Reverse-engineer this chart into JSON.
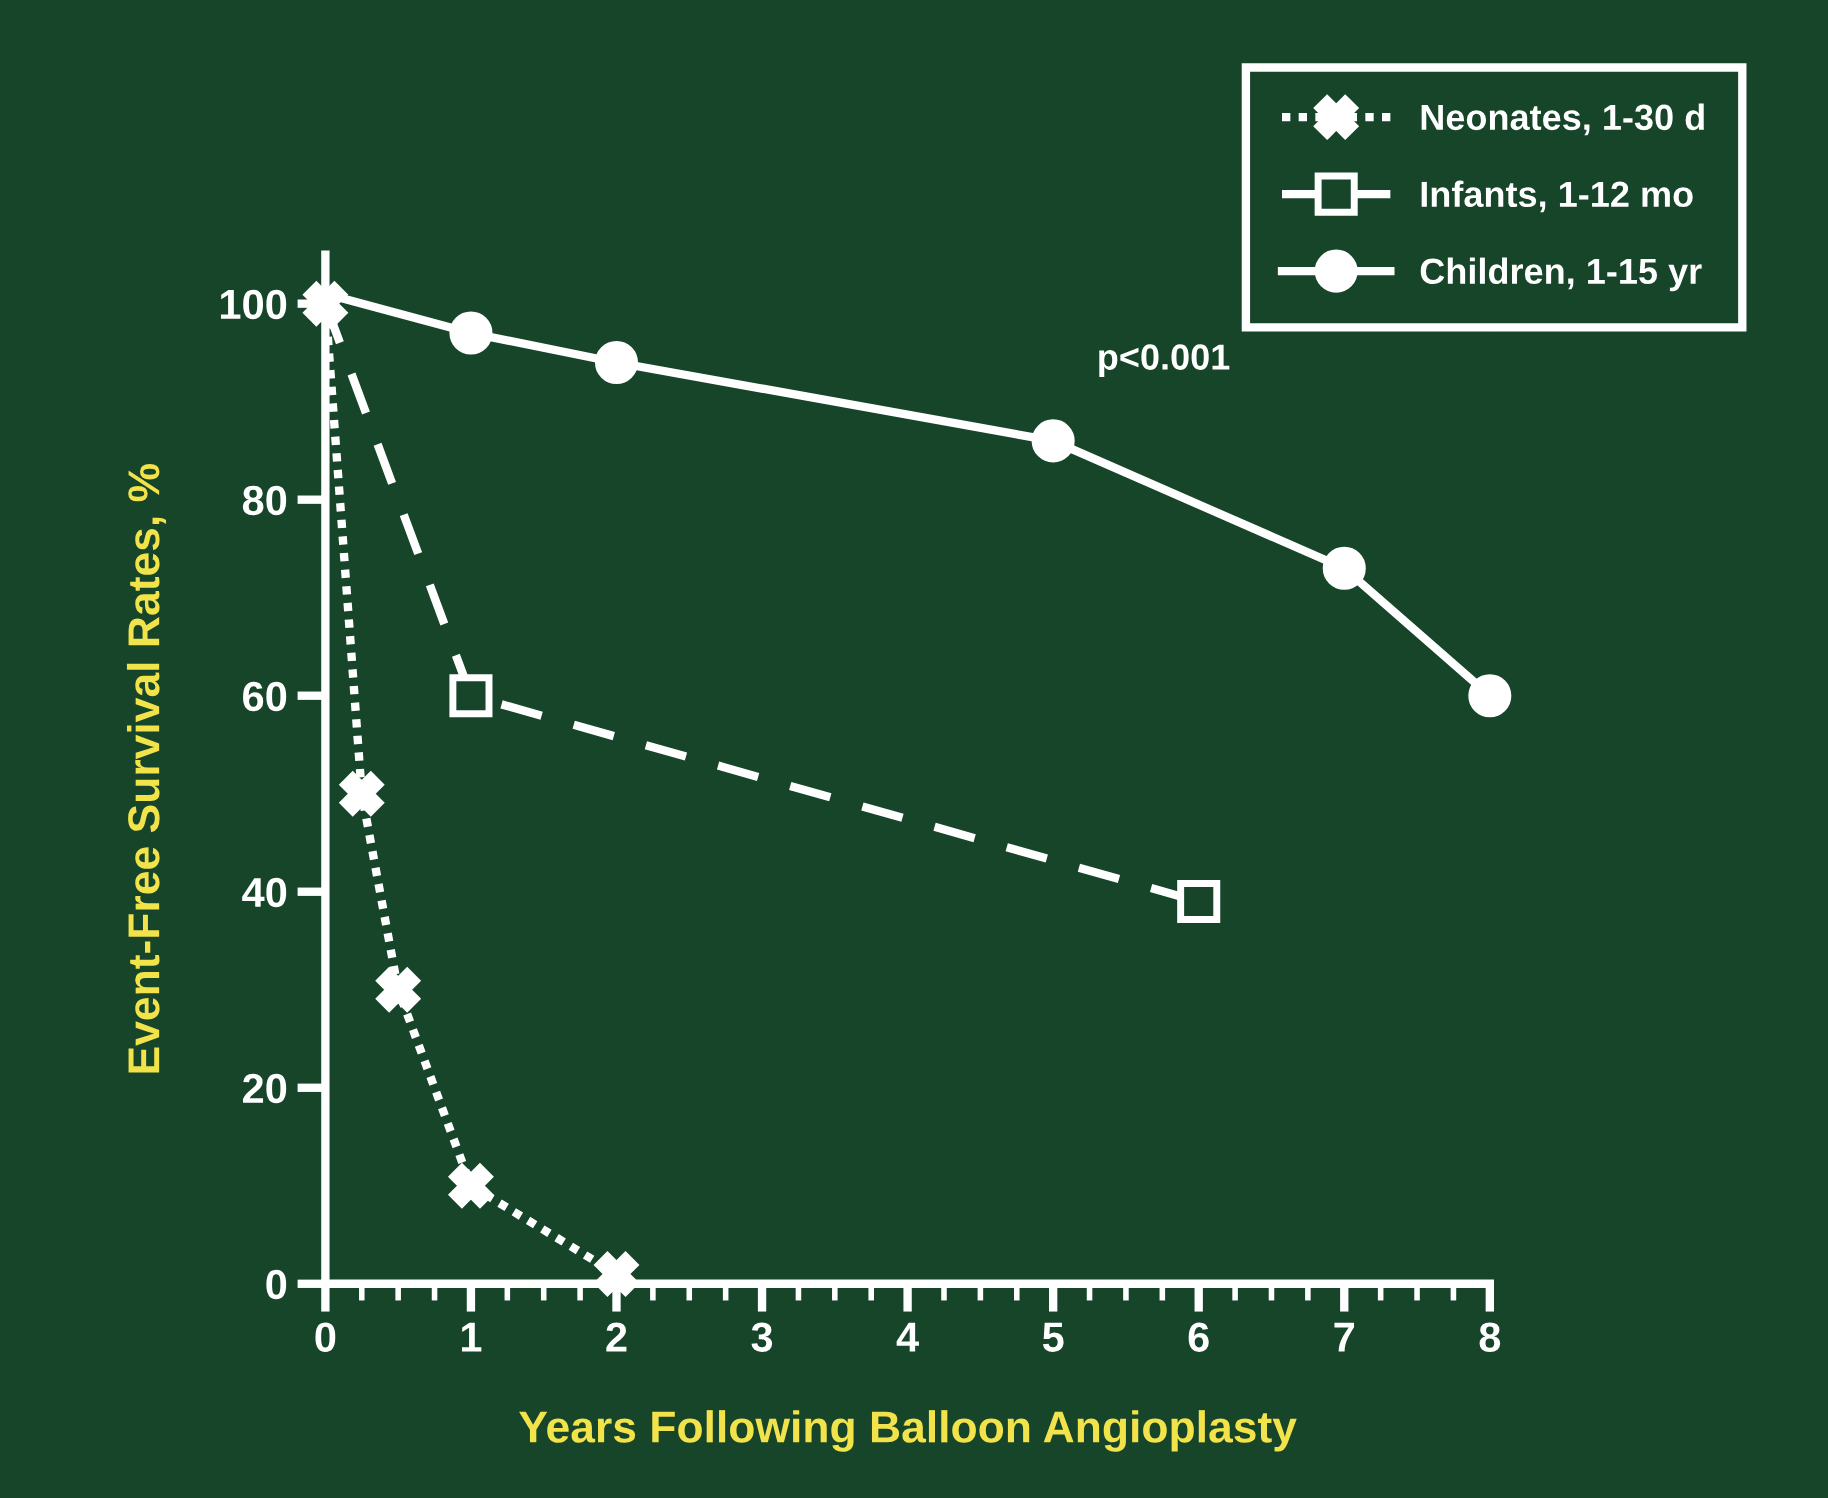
{
  "chart_data": {
    "type": "line",
    "xlabel": "Years Following Balloon Angioplasty",
    "ylabel": "Event-Free Survival Rates, %",
    "xlim": [
      0,
      8
    ],
    "xticks": [
      0,
      1,
      2,
      3,
      4,
      5,
      6,
      7,
      8
    ],
    "ylim": [
      0,
      105
    ],
    "yticks": [
      0,
      20,
      40,
      60,
      80,
      100
    ],
    "grid": false,
    "legend": "top right",
    "annotations": [
      "p<0.001"
    ],
    "series": [
      {
        "name": "Neonates, 1-30 d",
        "color": "#ffffff",
        "marker": "cross",
        "line_style": "dotted",
        "x": [
          0,
          0.25,
          0.5,
          1,
          2
        ],
        "values": [
          100,
          50,
          30,
          10,
          1
        ]
      },
      {
        "name": "Infants, 1-12 mo",
        "color": "#ffffff",
        "marker": "square",
        "line_style": "dashed",
        "x": [
          0,
          1,
          6
        ],
        "values": [
          100,
          60,
          39
        ]
      },
      {
        "name": "Children, 1-15 yr",
        "color": "#ffffff",
        "marker": "circle",
        "line_style": "solid",
        "x": [
          0,
          1,
          2,
          5,
          7,
          8
        ],
        "values": [
          101,
          97,
          94,
          86,
          73,
          60
        ]
      }
    ]
  }
}
